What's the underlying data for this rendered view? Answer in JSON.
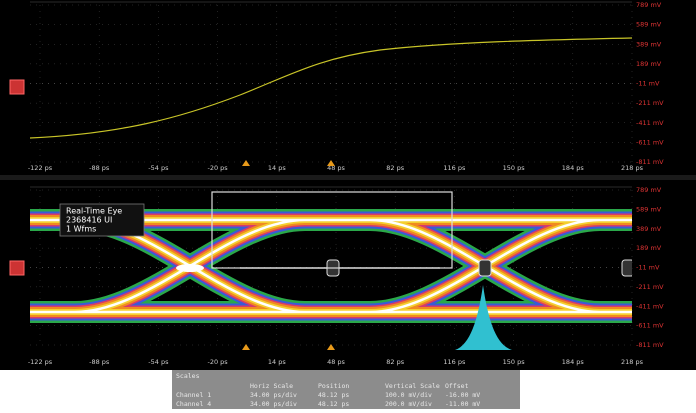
{
  "top_panel": {
    "y_labels": [
      "789 mV",
      "589 mV",
      "389 mV",
      "189 mV",
      "-11 mV",
      "-211 mV",
      "-411 mV",
      "-611 mV",
      "-811 mV"
    ],
    "x_labels": [
      "-122 ps",
      "-88 ps",
      "-54 ps",
      "-20 ps",
      "14 ps",
      "48 ps",
      "82 ps",
      "116 ps",
      "150 ps",
      "184 ps",
      "218 ps"
    ]
  },
  "bottom_panel": {
    "y_labels": [
      "789 mV",
      "589 mV",
      "389 mV",
      "189 mV",
      "-11 mV",
      "-211 mV",
      "-411 mV",
      "-611 mV",
      "-811 mV"
    ],
    "x_labels": [
      "-122 ps",
      "-88 ps",
      "-54 ps",
      "-20 ps",
      "14 ps",
      "48 ps",
      "82 ps",
      "116 ps",
      "150 ps",
      "184 ps",
      "218 ps"
    ],
    "eye_label": [
      "Real-Time Eye",
      "2368416 UI",
      "1 Wfms"
    ]
  },
  "scales": {
    "title": "Scales",
    "columns": [
      "Horiz Scale",
      "Position",
      "Vertical Scale",
      "Offset"
    ],
    "rows": [
      [
        "Channel 1",
        "34.00 ps/div",
        "48.12 ps",
        "100.0 mV/div",
        "-16.00 mV"
      ],
      [
        "Channel 4",
        "34.00 ps/div",
        "48.12 ps",
        "200.0 mV/div",
        "-11.00 mV"
      ]
    ]
  }
}
